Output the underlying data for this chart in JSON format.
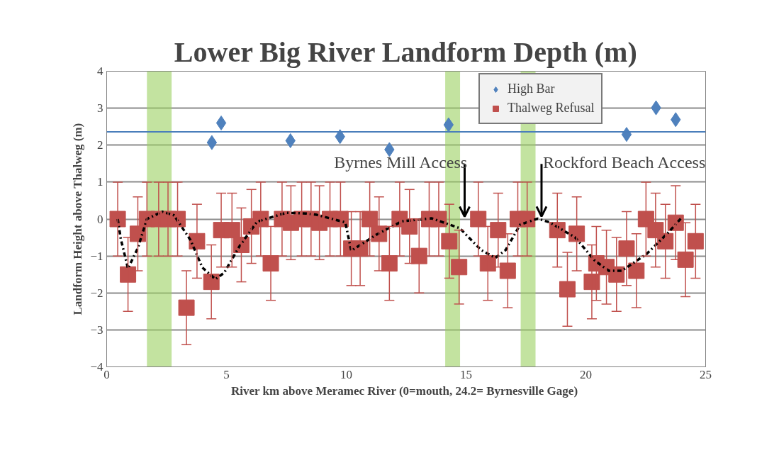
{
  "chart_data": {
    "type": "scatter",
    "title": "Lower Big River Landform Depth (m)",
    "xlabel": "River km above Meramec River (0=mouth,  24.2= Byrnesville Gage)",
    "ylabel": "Landform Height above Thalweg (m)",
    "xlim": [
      0,
      25
    ],
    "xticks": [
      0,
      5,
      10,
      15,
      20,
      25
    ],
    "ylim": [
      -4,
      4
    ],
    "yticks": [
      -4,
      -3,
      -2,
      -1,
      0,
      1,
      2,
      3,
      4
    ],
    "grid": "y",
    "legend": "top right",
    "series": [
      {
        "name": "High Bar",
        "type": "scatter",
        "marker": "diamond",
        "color": "#4f81bd",
        "x": [
          4.39,
          4.78,
          7.67,
          9.74,
          11.8,
          14.27,
          21.7,
          22.93,
          23.75
        ],
        "values": [
          2.07,
          2.6,
          2.12,
          2.23,
          1.88,
          2.55,
          2.29,
          3.01,
          2.69
        ]
      },
      {
        "name": "Thalweg Refusal",
        "type": "scatter",
        "marker": "square",
        "color": "#c0504d",
        "x": [
          0.46,
          0.89,
          1.3,
          1.68,
          2.17,
          2.56,
          2.96,
          3.33,
          3.77,
          4.37,
          4.78,
          5.23,
          5.62,
          6.04,
          6.43,
          6.85,
          7.32,
          7.69,
          8.14,
          8.53,
          8.88,
          9.32,
          9.76,
          10.21,
          10.58,
          10.98,
          11.37,
          11.8,
          12.23,
          12.64,
          13.04,
          13.46,
          13.86,
          14.3,
          14.71,
          15.51,
          15.91,
          16.34,
          16.74,
          17.16,
          17.55,
          18.81,
          19.23,
          19.62,
          20.25,
          20.44,
          20.86,
          21.28,
          21.7,
          22.11,
          22.51,
          22.91,
          23.32,
          23.75,
          24.16,
          24.58
        ],
        "values": [
          0,
          -1.5,
          -0.4,
          0,
          0,
          0,
          0,
          -2.4,
          -0.6,
          -1.7,
          -0.3,
          -0.3,
          -0.7,
          -0.2,
          0,
          -1.2,
          0,
          -0.1,
          0,
          0,
          -0.1,
          0,
          0,
          -0.8,
          -0.8,
          0,
          -0.4,
          -1.2,
          0,
          -0.2,
          -1.0,
          0,
          0,
          -0.6,
          -1.3,
          0,
          -1.2,
          -0.3,
          -1.4,
          0,
          0,
          -0.3,
          -1.9,
          -0.4,
          -1.7,
          -1.2,
          -1.3,
          -1.5,
          -0.8,
          -1.4,
          0,
          -0.3,
          -0.6,
          -0.1,
          -1.1,
          -0.6
        ],
        "errors": [
          1,
          1,
          1,
          1,
          1,
          1,
          1,
          1,
          1,
          1,
          1,
          1,
          1,
          1,
          1,
          1,
          1,
          1,
          1,
          1,
          1,
          1,
          1,
          1,
          1,
          1,
          1,
          1,
          1,
          1,
          1,
          1,
          1,
          1,
          1,
          1,
          1,
          1,
          1,
          1,
          1,
          1,
          1,
          1,
          1,
          1,
          1,
          1,
          1,
          1,
          1,
          1,
          1,
          1,
          1,
          1
        ]
      },
      {
        "type": "line",
        "marker": "none",
        "line_style": "dashed",
        "color": "#000000",
        "x": [
          0.46,
          0.59,
          0.89,
          1.31,
          1.68,
          2.32,
          2.81,
          3.5,
          3.99,
          4.54,
          4.91,
          5.55,
          6.28,
          7.5,
          8.33,
          8.73,
          9.96,
          10.21,
          11.24,
          12.33,
          13.56,
          14.74,
          15.63,
          16.22,
          16.65,
          17.26,
          17.99,
          18.49,
          19.56,
          20.38,
          20.96,
          21.5,
          22.53,
          23.42,
          23.96
        ],
        "values": [
          0,
          -0.54,
          -1.34,
          -0.77,
          0,
          0.2,
          0.1,
          -0.57,
          -1.31,
          -1.63,
          -1.45,
          -0.73,
          -0.07,
          0.17,
          0.15,
          0.12,
          -0.09,
          -0.86,
          -0.43,
          -0.06,
          0.02,
          -0.25,
          -0.84,
          -1.05,
          -0.84,
          -0.15,
          0.01,
          -0.09,
          -0.5,
          -1.13,
          -1.4,
          -1.4,
          -0.95,
          -0.38,
          0.01
        ]
      }
    ],
    "ref_lines": [
      {
        "axis": "y",
        "value": 2.36,
        "color": "#4a7ebb"
      }
    ],
    "bands": [
      {
        "axis": "x",
        "from": 1.68,
        "to": 2.71,
        "color": "#9bd060"
      },
      {
        "axis": "x",
        "from": 14.13,
        "to": 14.75,
        "color": "#9bd060"
      },
      {
        "axis": "x",
        "from": 17.28,
        "to": 17.9,
        "color": "#9bd060"
      }
    ],
    "annotations": [
      "Byrnes Mill Access",
      {
        "text": "Rockford Beach Access",
        "x": 18.15,
        "y": 0.07
      }
    ]
  }
}
